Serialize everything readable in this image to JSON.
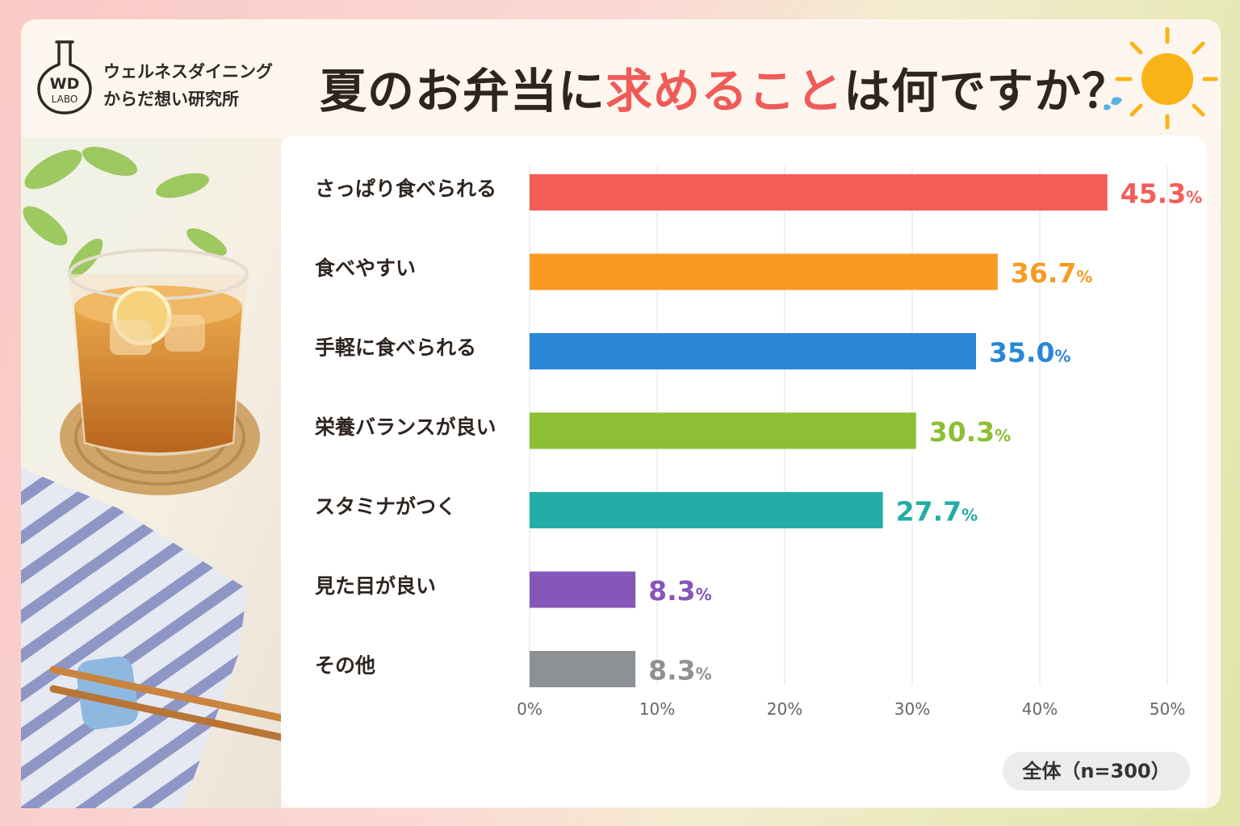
{
  "logo": {
    "mark_top": "WD",
    "mark_bottom": "LABO",
    "line1": "ウェルネスダイニング",
    "line2": "からだ想い研究所"
  },
  "title": {
    "part1": "夏のお弁当に",
    "accent": "求めること",
    "part2": "は何ですか？"
  },
  "sample_label": "全体（n=300）",
  "colors": {
    "accent": "#ef5b57",
    "text": "#2f2520"
  },
  "chart_data": {
    "type": "bar",
    "orientation": "horizontal",
    "categories": [
      "さっぱり食べられる",
      "食べやすい",
      "手軽に食べられる",
      "栄養バランスが良い",
      "スタミナがつく",
      "見た目が良い",
      "その他"
    ],
    "values": [
      45.3,
      36.7,
      35.0,
      30.3,
      27.7,
      8.3,
      8.3
    ],
    "value_labels": [
      "45.3",
      "36.7",
      "35.0",
      "30.3",
      "27.7",
      "8.3",
      "8.3"
    ],
    "unit": "%",
    "bar_colors": [
      "#f55d58",
      "#f99a23",
      "#2a86d6",
      "#8cbf33",
      "#22aea6",
      "#8457b9",
      "#8e9194"
    ],
    "xlim": [
      0,
      50
    ],
    "ticks": [
      "0%",
      "10%",
      "20%",
      "30%",
      "40%",
      "50%"
    ],
    "grid": true
  }
}
